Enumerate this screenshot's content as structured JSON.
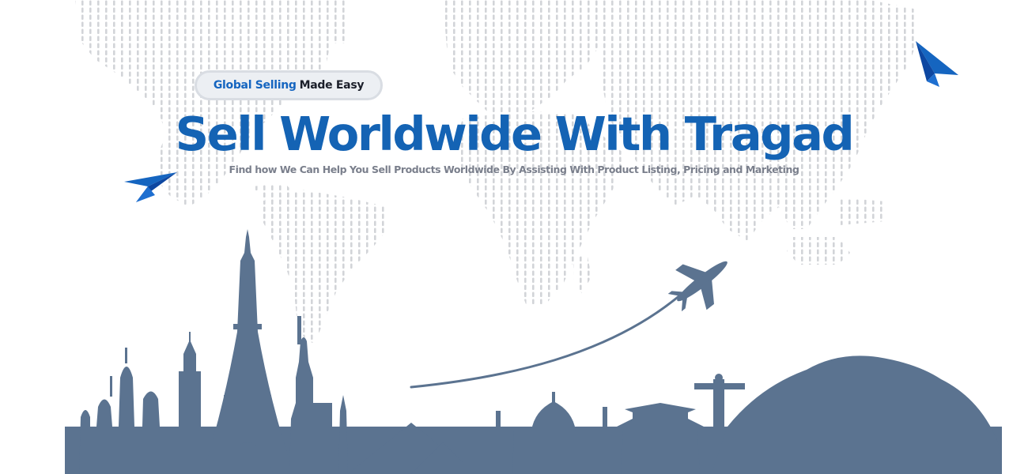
{
  "hero": {
    "badge": {
      "accent_text": "Global Selling",
      "text": "Made Easy"
    },
    "headline": "Sell Worldwide With Tragad",
    "subline": "Find how We Can Help You Sell  Products Worldwide By Assisting With Product  Listing, Pricing and Marketing"
  },
  "colors": {
    "brand_blue": "#1463b4",
    "skyline": "#5b7390",
    "map_dots": "#d2d4d8",
    "subline_gray": "#7a7f8c"
  },
  "icons": [
    "world-map-dots",
    "paper-plane-icon",
    "airplane-icon",
    "city-skyline"
  ]
}
